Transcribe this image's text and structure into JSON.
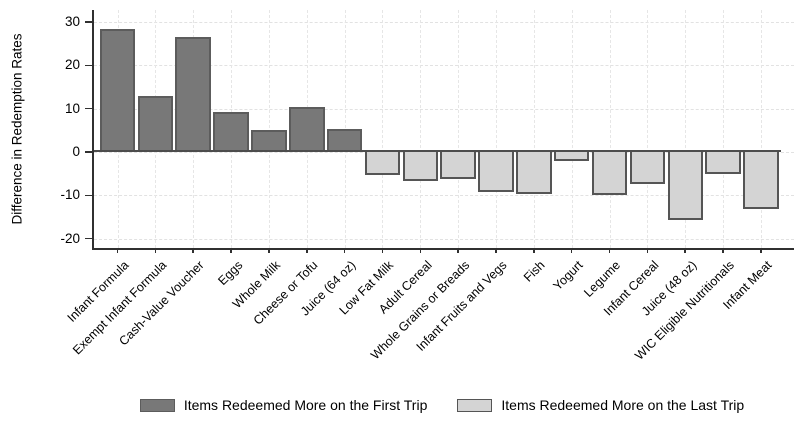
{
  "chart_data": {
    "type": "bar",
    "title": "",
    "xlabel": "",
    "ylabel": "Difference in Redemption Rates",
    "ylim": [
      -22,
      33
    ],
    "yticks": [
      30,
      20,
      10,
      0,
      -10,
      -20
    ],
    "grid": "dashed horizontal and vertical gridlines, light gray",
    "legend_position": "bottom",
    "categories": [
      "Infant Formula",
      "Exempt Infant Formula",
      "Cash-Value Voucher",
      "Eggs",
      "Whole Milk",
      "Cheese or Tofu",
      "Juice (64 oz)",
      "Low Fat Milk",
      "Adult Cereal",
      "Whole Grains or Breads",
      "Infant Fruits and Vegs",
      "Fish",
      "Yogurt",
      "Legume",
      "Infant Cereal",
      "Juice (48 oz)",
      "WIC Eligible Nutritionals",
      "Infant Meat"
    ],
    "values": [
      28.5,
      13,
      26.6,
      9.3,
      5.1,
      10.4,
      5.4,
      -5.2,
      -6.6,
      -6.3,
      -9.2,
      -9.7,
      -2,
      -10,
      -7.3,
      -15.6,
      -5.1,
      -13.1
    ],
    "series_index": [
      0,
      0,
      0,
      0,
      0,
      0,
      0,
      1,
      1,
      1,
      1,
      1,
      1,
      1,
      1,
      1,
      1,
      1
    ],
    "series": [
      {
        "name": "Items Redeemed More on the First Trip",
        "fill": "#787878",
        "border": "#5c5c5c"
      },
      {
        "name": "Items Redeemed More on the Last Trip",
        "fill": "#d4d4d4",
        "border": "#555555"
      }
    ]
  }
}
